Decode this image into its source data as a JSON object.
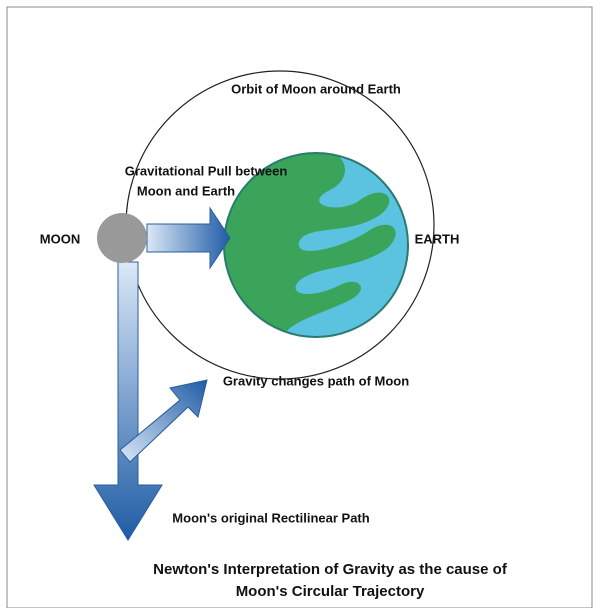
{
  "diagram": {
    "labels": {
      "orbit": "Orbit of Moon around Earth",
      "pull_line1": "Gravitational Pull between",
      "pull_line2": "Moon and Earth",
      "moon": "MOON",
      "earth": "EARTH",
      "gravity_path": "Gravity changes path of Moon",
      "rectilinear": "Moon's original Rectilinear Path"
    },
    "caption": {
      "line1": "Newton's Interpretation of Gravity as the cause of",
      "line2": "Moon's Circular Trajectory"
    }
  }
}
